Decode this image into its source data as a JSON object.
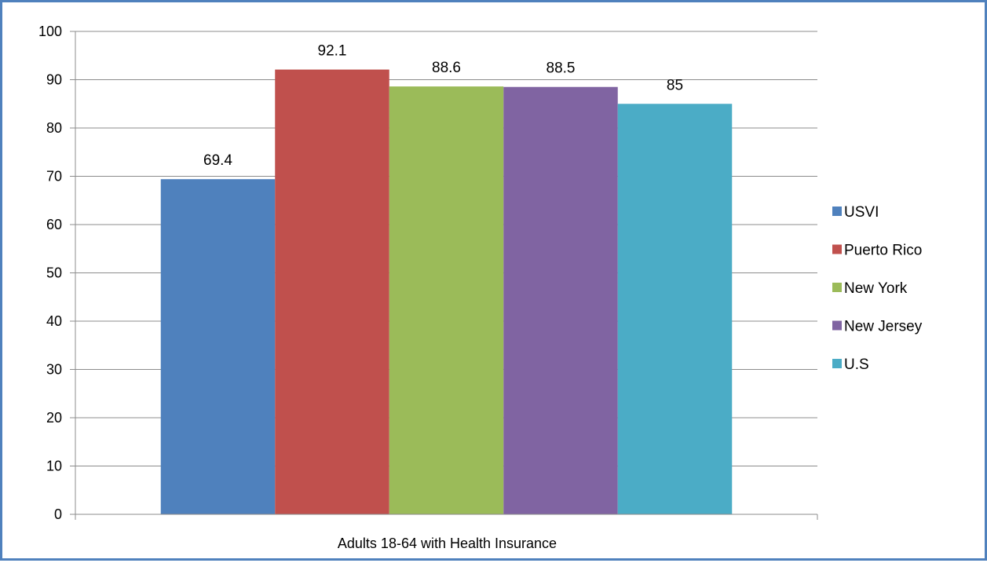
{
  "chart_data": {
    "type": "bar",
    "categories": [
      "Adults 18-64 with Health Insurance"
    ],
    "series": [
      {
        "name": "USVI",
        "values": [
          69.4
        ],
        "color": "#4f81bd"
      },
      {
        "name": "Puerto Rico",
        "values": [
          92.1
        ],
        "color": "#c0504d"
      },
      {
        "name": "New York",
        "values": [
          88.6
        ],
        "color": "#9bbb59"
      },
      {
        "name": "New Jersey",
        "values": [
          88.5
        ],
        "color": "#8064a2"
      },
      {
        "name": "U.S",
        "values": [
          85
        ],
        "color": "#4bacc6"
      }
    ],
    "data_labels": [
      "69.4",
      "92.1",
      "88.6",
      "88.5",
      "85"
    ],
    "yticks": [
      0,
      10,
      20,
      30,
      40,
      50,
      60,
      70,
      80,
      90,
      100
    ],
    "ylim": [
      0,
      100
    ],
    "grid": true,
    "legend_position": "right",
    "title": "",
    "xlabel": "",
    "ylabel": ""
  },
  "frame_color": "#4f81bd",
  "grid_color": "#8c8c8c"
}
